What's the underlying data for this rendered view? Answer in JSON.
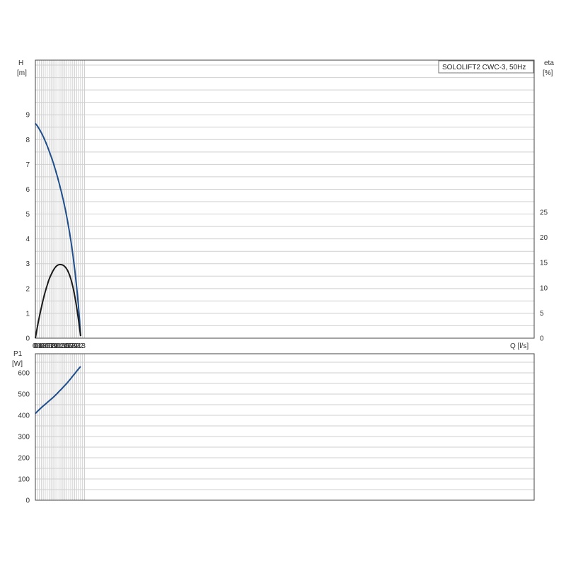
{
  "chart_data": [
    {
      "type": "line",
      "title": "SOLOLIFT2 CWC-3, 50Hz",
      "xlabel": "Q [l/s]",
      "ylabel": "H",
      "ylabel_unit": "[m]",
      "y2label": "eta",
      "y2label_unit": "[%]",
      "xlim": [
        0,
        2.5
      ],
      "ylim": [
        0,
        11.2
      ],
      "y2lim": [
        0,
        25
      ],
      "grid": true,
      "x_ticks": [
        "0",
        "0.1",
        "0.2",
        "0.3",
        "0.4",
        "0.5",
        "0.6",
        "0.7",
        "0.8",
        "0.9",
        "1.0",
        "1.1",
        "1.2",
        "1.3",
        "1.4",
        "1.5",
        "1.6",
        "1.7",
        "1.8",
        "1.9",
        "2.0",
        "2.1",
        "2.2",
        "2.3"
      ],
      "y_ticks": [
        "0",
        "1",
        "2",
        "3",
        "4",
        "5",
        "6",
        "7",
        "8",
        "9"
      ],
      "y2_ticks": [
        "0",
        "5",
        "10",
        "15",
        "20",
        "25"
      ],
      "series": [
        {
          "name": "H",
          "color": "#1f4e8c",
          "axis": "left",
          "x": [
            0,
            0.1,
            0.2,
            0.3,
            0.4,
            0.5,
            0.6,
            0.7,
            0.8,
            0.9,
            1.0,
            1.1,
            1.2,
            1.3,
            1.4,
            1.5,
            1.6,
            1.7,
            1.8,
            1.9,
            2.0,
            2.1,
            2.2,
            2.3
          ],
          "y": [
            8.65,
            8.55,
            8.42,
            8.28,
            8.12,
            7.94,
            7.75,
            7.54,
            7.32,
            7.09,
            6.83,
            6.56,
            6.27,
            5.96,
            5.63,
            5.27,
            4.87,
            4.43,
            3.95,
            3.4,
            2.77,
            2.05,
            1.2,
            0.1
          ]
        },
        {
          "name": "eta",
          "color": "#1a1a1a",
          "axis": "right",
          "x": [
            0,
            0.1,
            0.2,
            0.3,
            0.4,
            0.5,
            0.6,
            0.7,
            0.8,
            0.9,
            1.0,
            1.1,
            1.2,
            1.3,
            1.4,
            1.5,
            1.6,
            1.7,
            1.8,
            1.9,
            2.0,
            2.1,
            2.2,
            2.3
          ],
          "y": [
            0,
            2.2,
            4.2,
            6.0,
            7.7,
            9.2,
            10.5,
            11.7,
            12.6,
            13.4,
            14.0,
            14.4,
            14.6,
            14.6,
            14.5,
            14.2,
            13.7,
            12.9,
            11.8,
            10.3,
            8.4,
            6.1,
            3.4,
            0.4
          ]
        }
      ]
    },
    {
      "type": "line",
      "ylabel": "P1",
      "ylabel_unit": "[W]",
      "xlim": [
        0,
        2.5
      ],
      "ylim": [
        0,
        690
      ],
      "grid": true,
      "y_ticks": [
        "0",
        "100",
        "200",
        "300",
        "400",
        "500",
        "600"
      ],
      "series": [
        {
          "name": "P1",
          "color": "#1f4e8c",
          "axis": "left",
          "x": [
            0,
            0.1,
            0.2,
            0.3,
            0.4,
            0.5,
            0.6,
            0.7,
            0.8,
            0.9,
            1.0,
            1.1,
            1.2,
            1.3,
            1.4,
            1.5,
            1.6,
            1.7,
            1.8,
            1.9,
            2.0,
            2.1,
            2.2,
            2.3
          ],
          "y": [
            408,
            418,
            427,
            436,
            444,
            452,
            460,
            468,
            476,
            484,
            493,
            502,
            512,
            521,
            531,
            541,
            551,
            562,
            573,
            585,
            596,
            608,
            619,
            630
          ]
        }
      ]
    }
  ]
}
